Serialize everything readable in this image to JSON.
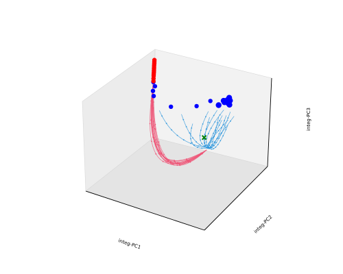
{
  "chart_data": {
    "type": "scatter",
    "projection": "3d",
    "grid": true,
    "xlabel": "integ-PC1",
    "ylabel": "integ-PC2",
    "zlabel": "integ-PC3",
    "colors": {
      "blue_traj": "#3399dd",
      "red_traj": "#ee5577",
      "blue_marker": "#0000ff",
      "red_marker": "#ff0000",
      "green_marker": "#008000"
    },
    "marker_shapes": {
      "blue_marker": "circle",
      "red_marker": "circle",
      "green_marker": "x"
    },
    "series": [
      {
        "color_key": "blue_traj",
        "traj_start": [
          [
            -0.66,
            0.23,
            0.56
          ],
          [
            -0.6,
            0.22,
            0.54
          ],
          [
            -0.72,
            0.18,
            0.52
          ],
          [
            -0.55,
            0.2,
            0.5
          ],
          [
            -0.78,
            0.25,
            0.58
          ],
          [
            -0.5,
            0.24,
            0.6
          ],
          [
            -0.7,
            0.28,
            0.62
          ],
          [
            -0.62,
            0.17,
            0.48
          ],
          [
            -0.58,
            0.3,
            0.6
          ],
          [
            -0.75,
            0.12,
            0.46
          ],
          [
            -0.45,
            0.1,
            0.52
          ],
          [
            -0.2,
            0.05,
            0.3
          ],
          [
            0.02,
            0.1,
            0.38
          ],
          [
            0.38,
            0.08,
            0.32
          ],
          [
            -0.35,
            0.25,
            0.5
          ]
        ],
        "traj_end": [
          -0.78,
          -0.52,
          0.42
        ]
      },
      {
        "color_key": "red_traj",
        "traj_start": [
          [
            0.93,
            0.94,
            0.08
          ],
          [
            0.93,
            0.94,
            0.02
          ],
          [
            0.93,
            0.94,
            -0.05
          ],
          [
            0.93,
            0.94,
            -0.1
          ],
          [
            0.93,
            0.94,
            0.14
          ],
          [
            0.93,
            0.94,
            0.2
          ],
          [
            0.93,
            0.94,
            -0.02
          ],
          [
            0.93,
            0.94,
            0.05
          ],
          [
            0.93,
            0.94,
            0.11
          ],
          [
            0.93,
            0.94,
            -0.07
          ],
          [
            0.93,
            0.94,
            0.17
          ],
          [
            0.93,
            0.94,
            -0.12
          ]
        ],
        "traj_end": [
          -0.75,
          -0.55,
          0.38
        ]
      }
    ],
    "markers": {
      "blue": [
        [
          -0.7,
          0.25,
          0.9
        ],
        [
          -0.62,
          0.23,
          0.84
        ],
        [
          -0.68,
          0.22,
          0.86
        ],
        [
          -0.65,
          0.26,
          0.88
        ],
        [
          -0.72,
          0.2,
          0.85
        ],
        [
          -0.58,
          0.28,
          0.82
        ],
        [
          -0.55,
          0.18,
          0.78
        ],
        [
          -0.66,
          0.3,
          0.91
        ],
        [
          -0.25,
          0.05,
          0.72
        ],
        [
          -0.35,
          0.3,
          0.7
        ],
        [
          0.2,
          0.1,
          0.47
        ],
        [
          0.9,
          0.94,
          0.02
        ],
        [
          0.92,
          0.92,
          -0.08
        ],
        [
          0.93,
          0.94,
          0.1
        ],
        [
          0.91,
          0.93,
          -0.2
        ]
      ],
      "red": [
        [
          0.93,
          0.94,
          0.6
        ],
        [
          0.93,
          0.94,
          0.56
        ],
        [
          0.93,
          0.94,
          0.52
        ],
        [
          0.93,
          0.94,
          0.48
        ],
        [
          0.93,
          0.94,
          0.44
        ],
        [
          0.93,
          0.94,
          0.4
        ],
        [
          0.93,
          0.94,
          0.36
        ],
        [
          0.93,
          0.94,
          0.32
        ],
        [
          0.93,
          0.94,
          0.28
        ],
        [
          0.93,
          0.94,
          0.24
        ],
        [
          0.93,
          0.94,
          0.18
        ],
        [
          0.93,
          0.94,
          0.12
        ]
      ],
      "green": [
        [
          -0.6,
          -0.35,
          0.45
        ]
      ]
    }
  }
}
